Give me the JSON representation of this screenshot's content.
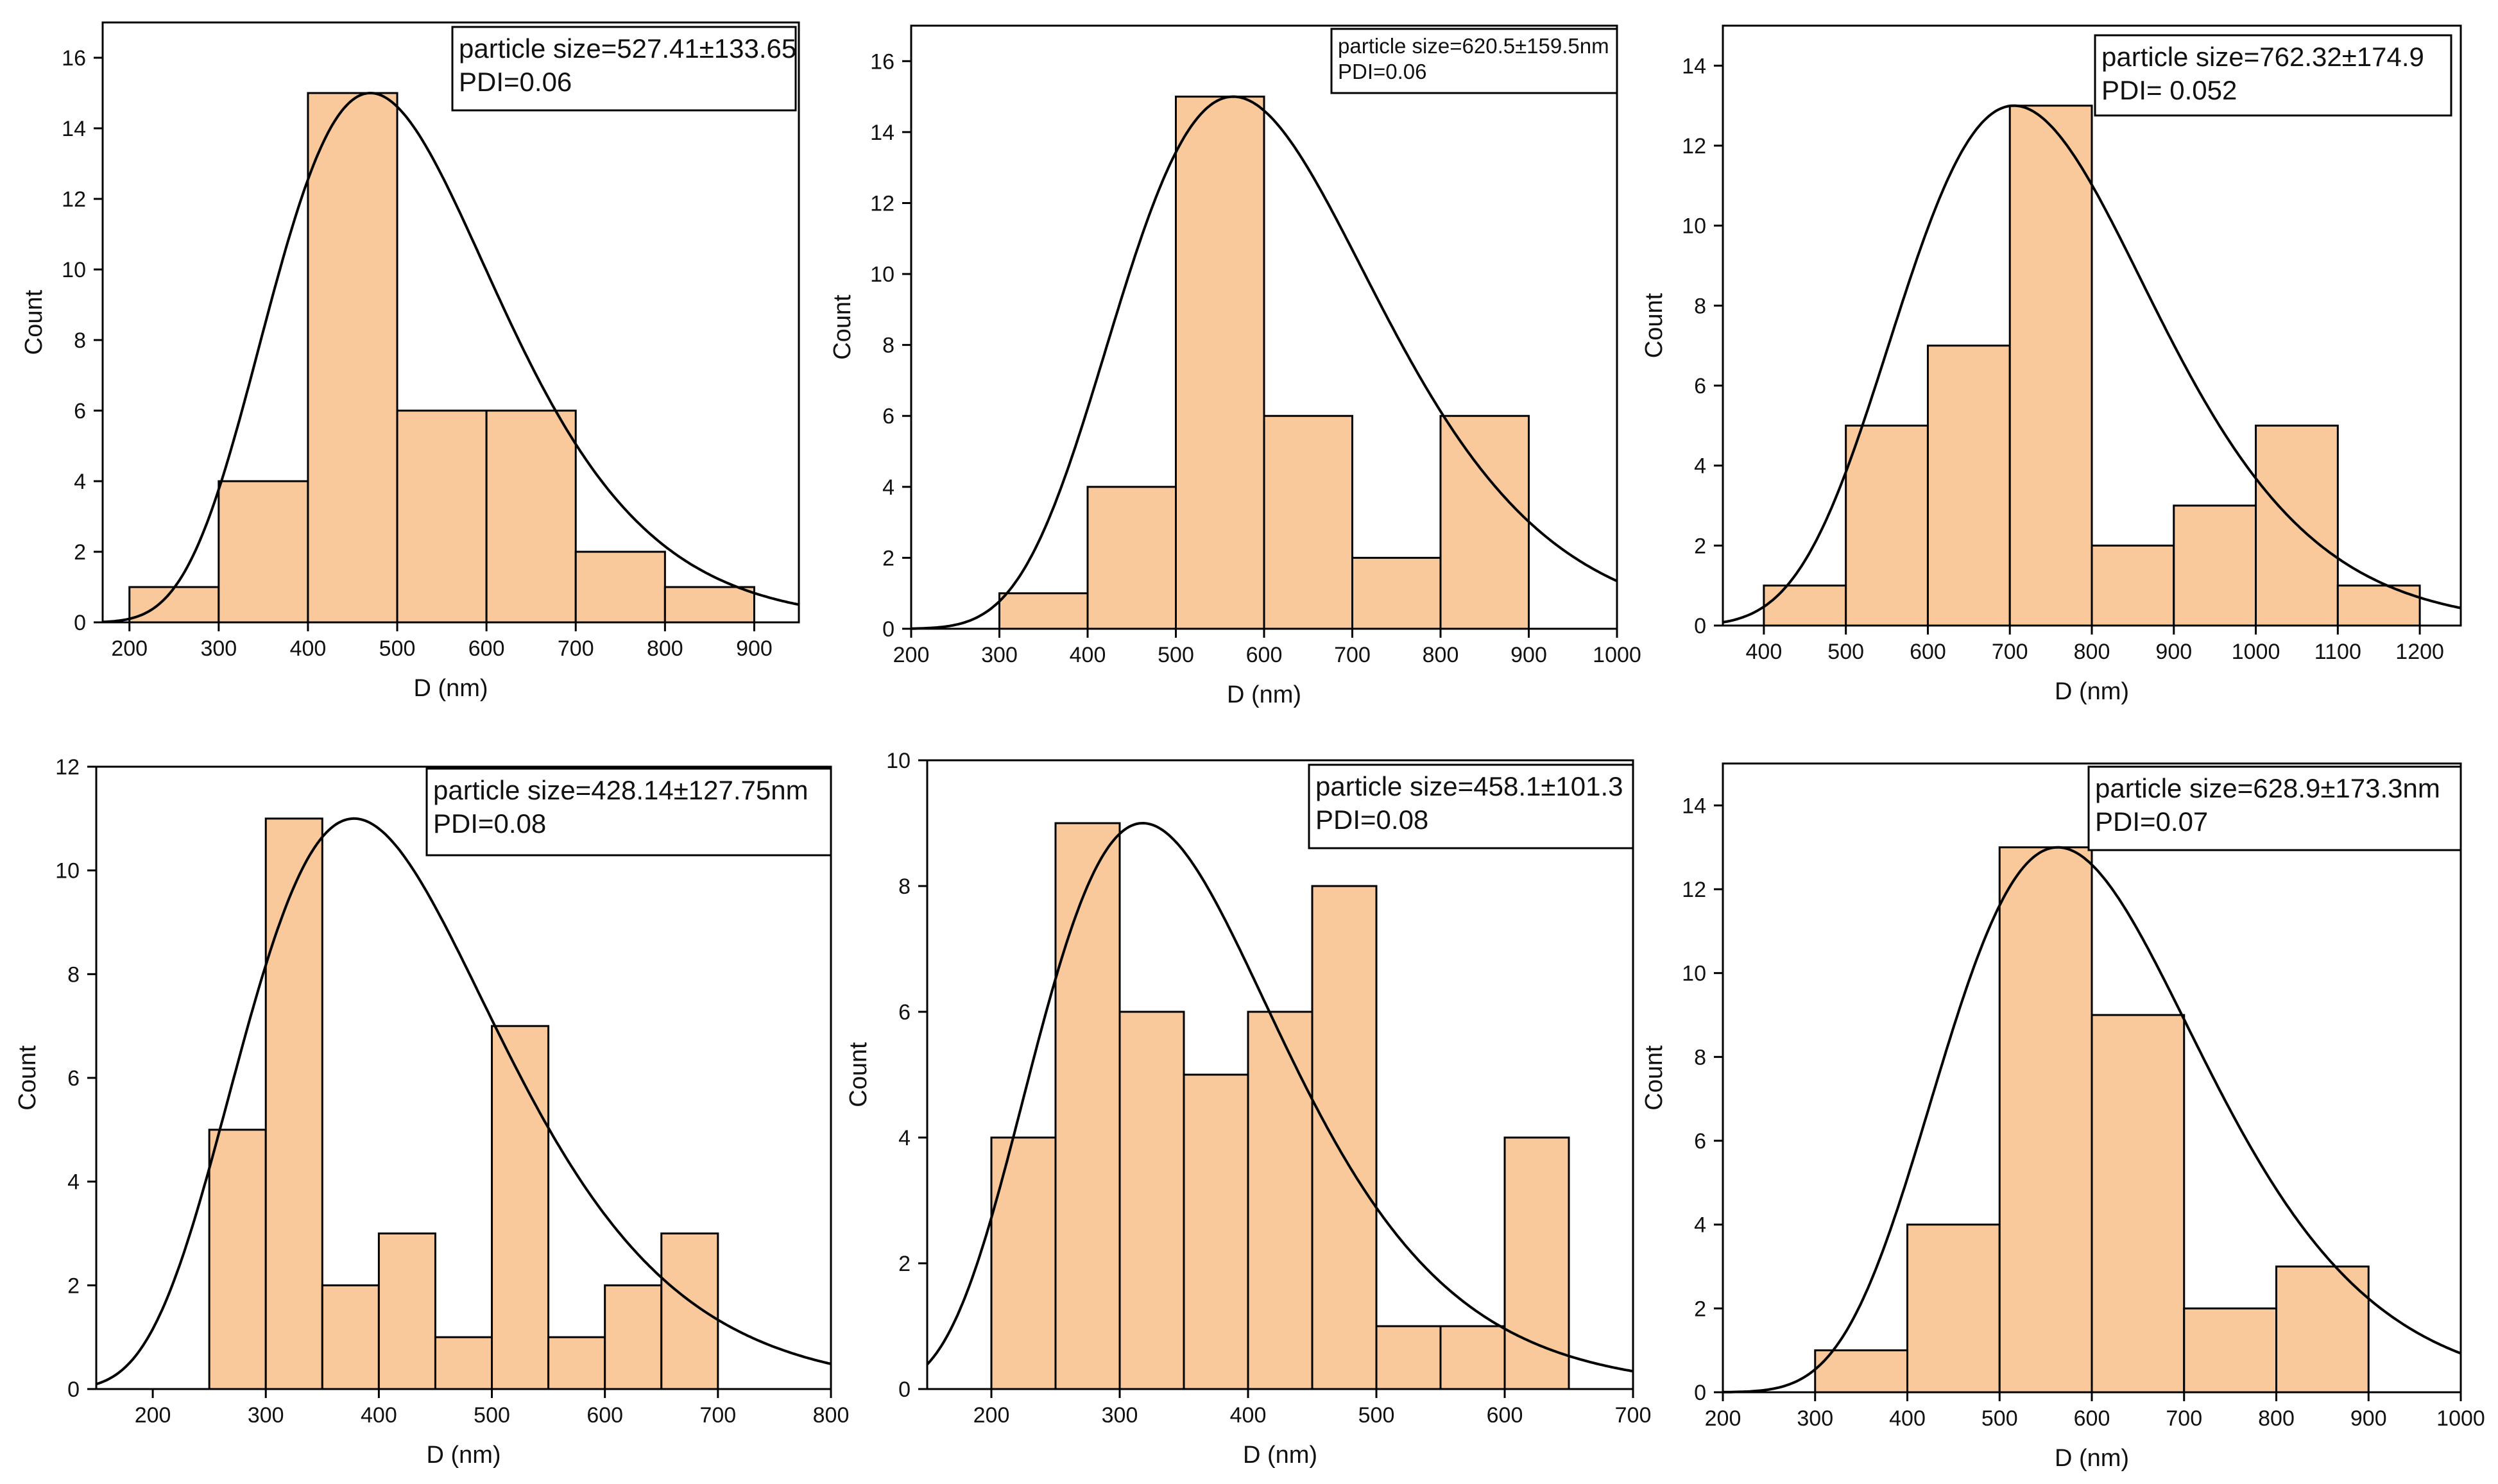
{
  "colors": {
    "bar_fill": "#F9C89B",
    "bar_stroke": "#000000",
    "curve": "#000000",
    "background": "#ffffff"
  },
  "chart_data": [
    {
      "type": "bar",
      "title": "",
      "xlabel": "D (nm)",
      "ylabel": "Count",
      "xlim": [
        170,
        950
      ],
      "ylim": [
        0,
        17
      ],
      "x_ticks": [
        200,
        300,
        400,
        500,
        600,
        700,
        800,
        900
      ],
      "y_ticks": [
        0,
        2,
        4,
        6,
        8,
        10,
        12,
        14,
        16
      ],
      "bins": [
        [
          200,
          300
        ],
        [
          300,
          400
        ],
        [
          400,
          500
        ],
        [
          500,
          600
        ],
        [
          600,
          700
        ],
        [
          700,
          800
        ],
        [
          800,
          900
        ]
      ],
      "values": [
        1,
        4,
        15,
        6,
        6,
        2,
        1
      ],
      "fit": {
        "type": "lognormal",
        "peak_x": 470,
        "peak_y": 15,
        "sigma": 0.27
      },
      "legend_lines": [
        "particle size=527.41±133.65",
        "PDI=0.06"
      ],
      "legend_small": false
    },
    {
      "type": "bar",
      "title": "",
      "xlabel": "D (nm)",
      "ylabel": "Count",
      "xlim": [
        200,
        1000
      ],
      "ylim": [
        0,
        17
      ],
      "x_ticks": [
        200,
        300,
        400,
        500,
        600,
        700,
        800,
        900,
        1000
      ],
      "y_ticks": [
        0,
        2,
        4,
        6,
        8,
        10,
        12,
        14,
        16
      ],
      "bins": [
        [
          300,
          400
        ],
        [
          400,
          500
        ],
        [
          500,
          600
        ],
        [
          600,
          700
        ],
        [
          700,
          800
        ],
        [
          800,
          900
        ]
      ],
      "values": [
        1,
        4,
        15,
        6,
        2,
        6
      ],
      "fit": {
        "type": "lognormal",
        "peak_x": 565,
        "peak_y": 15,
        "sigma": 0.26
      },
      "legend_lines": [
        "particle size=620.5±159.5nm",
        "PDI=0.06"
      ],
      "legend_small": true
    },
    {
      "type": "bar",
      "title": "",
      "xlabel": "D (nm)",
      "ylabel": "Count",
      "xlim": [
        350,
        1250
      ],
      "ylim": [
        0,
        15
      ],
      "x_ticks": [
        400,
        500,
        600,
        700,
        800,
        900,
        1000,
        1100,
        1200
      ],
      "y_ticks": [
        0,
        2,
        4,
        6,
        8,
        10,
        12,
        14
      ],
      "bins": [
        [
          400,
          500
        ],
        [
          500,
          600
        ],
        [
          600,
          700
        ],
        [
          700,
          800
        ],
        [
          800,
          900
        ],
        [
          900,
          1000
        ],
        [
          1000,
          1100
        ],
        [
          1100,
          1200
        ]
      ],
      "values": [
        1,
        5,
        7,
        13,
        2,
        3,
        5,
        1
      ],
      "fit": {
        "type": "lognormal",
        "peak_x": 705,
        "peak_y": 13,
        "sigma": 0.22
      },
      "legend_lines": [
        "particle size=762.32±174.9",
        "PDI= 0.052"
      ],
      "legend_small": false
    },
    {
      "type": "bar",
      "title": "",
      "xlabel": "D (nm)",
      "ylabel": "Count",
      "xlim": [
        150,
        800
      ],
      "ylim": [
        0,
        12
      ],
      "x_ticks": [
        200,
        300,
        400,
        500,
        600,
        700,
        800
      ],
      "y_ticks": [
        0,
        2,
        4,
        6,
        8,
        10,
        12
      ],
      "bins": [
        [
          250,
          300
        ],
        [
          300,
          350
        ],
        [
          350,
          400
        ],
        [
          400,
          450
        ],
        [
          450,
          500
        ],
        [
          500,
          550
        ],
        [
          550,
          600
        ],
        [
          600,
          650
        ],
        [
          650,
          700
        ]
      ],
      "values": [
        5,
        11,
        2,
        3,
        1,
        7,
        1,
        2,
        3
      ],
      "fit": {
        "type": "lognormal",
        "peak_x": 378,
        "peak_y": 11,
        "sigma": 0.3
      },
      "legend_lines": [
        "particle size=428.14±127.75nm",
        "PDI=0.08"
      ],
      "legend_small": false
    },
    {
      "type": "bar",
      "title": "",
      "xlabel": "D (nm)",
      "ylabel": "Count",
      "xlim": [
        150,
        700
      ],
      "ylim": [
        0,
        10
      ],
      "x_ticks": [
        200,
        300,
        400,
        500,
        600,
        700
      ],
      "y_ticks": [
        0,
        2,
        4,
        6,
        8,
        10
      ],
      "bins": [
        [
          200,
          250
        ],
        [
          250,
          300
        ],
        [
          300,
          350
        ],
        [
          350,
          400
        ],
        [
          400,
          450
        ],
        [
          450,
          500
        ],
        [
          500,
          550
        ],
        [
          550,
          600
        ],
        [
          600,
          650
        ]
      ],
      "values": [
        4,
        9,
        6,
        5,
        6,
        8,
        1,
        1,
        4
      ],
      "fit": {
        "type": "lognormal",
        "peak_x": 318,
        "peak_y": 9,
        "sigma": 0.3
      },
      "legend_lines": [
        "particle size=458.1±101.3",
        "PDI=0.08"
      ],
      "legend_small": false
    },
    {
      "type": "bar",
      "title": "",
      "xlabel": "D (nm)",
      "ylabel": "Count",
      "xlim": [
        200,
        1000
      ],
      "ylim": [
        0,
        15
      ],
      "x_ticks": [
        200,
        300,
        400,
        500,
        600,
        700,
        800,
        900,
        1000
      ],
      "y_ticks": [
        0,
        2,
        4,
        6,
        8,
        10,
        12,
        14
      ],
      "bins": [
        [
          300,
          400
        ],
        [
          400,
          500
        ],
        [
          500,
          600
        ],
        [
          600,
          700
        ],
        [
          700,
          800
        ],
        [
          800,
          900
        ]
      ],
      "values": [
        1,
        4,
        13,
        9,
        2,
        3
      ],
      "fit": {
        "type": "lognormal",
        "peak_x": 563,
        "peak_y": 13,
        "sigma": 0.25
      },
      "legend_lines": [
        "particle size=628.9±173.3nm",
        "PDI=0.07"
      ],
      "legend_small": false
    }
  ]
}
